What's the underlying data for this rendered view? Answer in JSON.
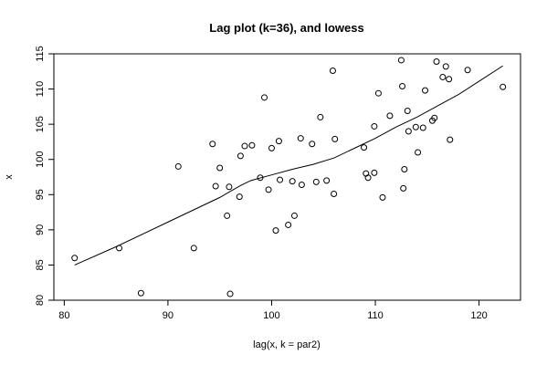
{
  "chart_data": {
    "type": "scatter",
    "title": "Lag plot (k=36), and lowess",
    "xlabel": "lag(x, k = par2)",
    "ylabel": "x",
    "xlim": [
      79,
      124
    ],
    "ylim": [
      80,
      115
    ],
    "xticks": [
      80,
      90,
      100,
      110,
      120
    ],
    "yticks": [
      80,
      85,
      90,
      95,
      100,
      105,
      110,
      115
    ],
    "grid": false,
    "series": [
      {
        "kind": "points",
        "marker": "open-circle",
        "points": [
          [
            81.0,
            86.0
          ],
          [
            85.3,
            87.4
          ],
          [
            87.4,
            81.0
          ],
          [
            91.0,
            99.0
          ],
          [
            92.5,
            87.4
          ],
          [
            94.3,
            102.2
          ],
          [
            94.6,
            96.2
          ],
          [
            95.0,
            98.8
          ],
          [
            95.7,
            92.0
          ],
          [
            95.9,
            96.1
          ],
          [
            96.0,
            80.9
          ],
          [
            96.9,
            94.7
          ],
          [
            97.0,
            100.5
          ],
          [
            97.4,
            101.9
          ],
          [
            98.1,
            102.0
          ],
          [
            98.9,
            97.4
          ],
          [
            99.3,
            108.8
          ],
          [
            99.7,
            95.7
          ],
          [
            100.0,
            101.6
          ],
          [
            100.4,
            89.9
          ],
          [
            100.7,
            102.6
          ],
          [
            100.8,
            97.1
          ],
          [
            101.6,
            90.7
          ],
          [
            102.0,
            96.9
          ],
          [
            102.2,
            92.0
          ],
          [
            102.8,
            103.0
          ],
          [
            102.9,
            96.4
          ],
          [
            103.9,
            102.2
          ],
          [
            104.3,
            96.8
          ],
          [
            104.7,
            106.0
          ],
          [
            105.3,
            97.0
          ],
          [
            105.9,
            112.6
          ],
          [
            106.0,
            95.1
          ],
          [
            106.1,
            102.9
          ],
          [
            108.9,
            101.7
          ],
          [
            109.1,
            98.0
          ],
          [
            109.3,
            97.4
          ],
          [
            109.9,
            104.7
          ],
          [
            109.9,
            98.1
          ],
          [
            110.3,
            109.4
          ],
          [
            110.7,
            94.6
          ],
          [
            111.4,
            106.2
          ],
          [
            112.5,
            114.1
          ],
          [
            112.6,
            110.4
          ],
          [
            112.7,
            95.9
          ],
          [
            112.8,
            98.6
          ],
          [
            113.1,
            106.9
          ],
          [
            113.2,
            104.0
          ],
          [
            113.9,
            104.6
          ],
          [
            114.1,
            101.0
          ],
          [
            114.6,
            104.5
          ],
          [
            114.8,
            109.8
          ],
          [
            115.5,
            105.5
          ],
          [
            115.7,
            105.9
          ],
          [
            115.9,
            113.9
          ],
          [
            116.5,
            111.7
          ],
          [
            116.8,
            113.2
          ],
          [
            117.1,
            111.4
          ],
          [
            117.2,
            102.8
          ],
          [
            118.9,
            112.7
          ],
          [
            122.3,
            110.3
          ]
        ]
      },
      {
        "kind": "line",
        "label": "lowess",
        "points": [
          [
            81.0,
            85.0
          ],
          [
            85.0,
            87.6
          ],
          [
            90.0,
            91.1
          ],
          [
            95.0,
            94.6
          ],
          [
            97.0,
            96.3
          ],
          [
            98.0,
            97.0
          ],
          [
            100.0,
            97.8
          ],
          [
            102.0,
            98.6
          ],
          [
            104.0,
            99.3
          ],
          [
            106.0,
            100.2
          ],
          [
            108.0,
            101.6
          ],
          [
            110.0,
            103.0
          ],
          [
            112.0,
            104.6
          ],
          [
            114.0,
            106.0
          ],
          [
            116.0,
            107.6
          ],
          [
            118.0,
            109.2
          ],
          [
            120.0,
            111.1
          ],
          [
            122.3,
            113.3
          ]
        ]
      }
    ]
  }
}
